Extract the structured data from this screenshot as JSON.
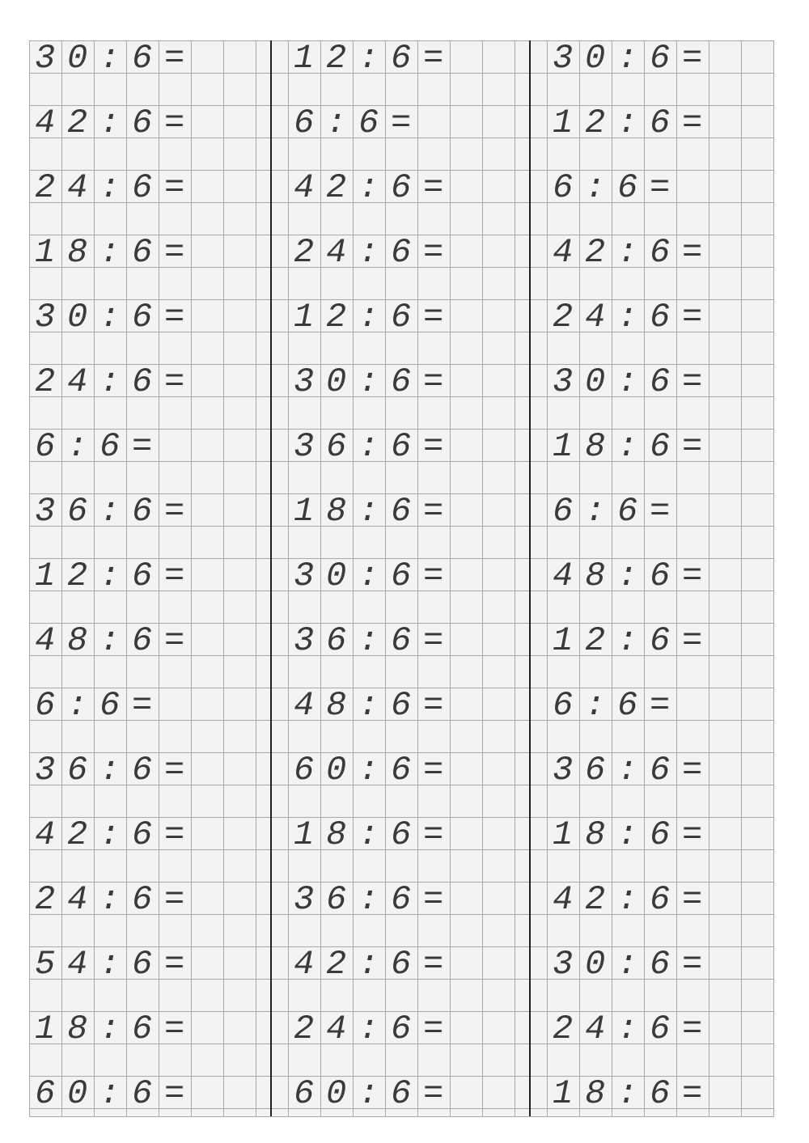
{
  "worksheet": {
    "columns": [
      [
        "30 : 6 =",
        "42 : 6 =",
        "24 : 6 =",
        "18 : 6 =",
        "30 : 6 =",
        "24 : 6 =",
        "6 : 6 =",
        "36 : 6 =",
        "12 : 6 =",
        "48 : 6 =",
        "6 : 6 =",
        "36 : 6 =",
        "42 : 6 =",
        "24 : 6 =",
        "54 : 6 =",
        "18 : 6 =",
        "60 : 6 ="
      ],
      [
        "12 : 6 =",
        "6 : 6 =",
        "42 : 6 =",
        "24 : 6 =",
        "12 : 6 =",
        "30 : 6 =",
        "36 : 6 =",
        "18 : 6 =",
        "30 : 6 =",
        "36 : 6 =",
        "48 : 6 =",
        "60 : 6 =",
        "18 : 6 =",
        "36 : 6 =",
        "42 : 6 =",
        "24 : 6 =",
        "60 : 6 ="
      ],
      [
        "30 : 6 =",
        "12 : 6 =",
        "6 : 6 =",
        "42 : 6 =",
        "24 : 6 =",
        "30 : 6 =",
        "18 : 6 =",
        "6 : 6 =",
        "48 : 6 =",
        "12 : 6 =",
        "6 : 6 =",
        "36 : 6 =",
        "18 : 6 =",
        "42 : 6 =",
        "30 : 6 =",
        "24 : 6 =",
        "18 : 6 ="
      ]
    ]
  }
}
